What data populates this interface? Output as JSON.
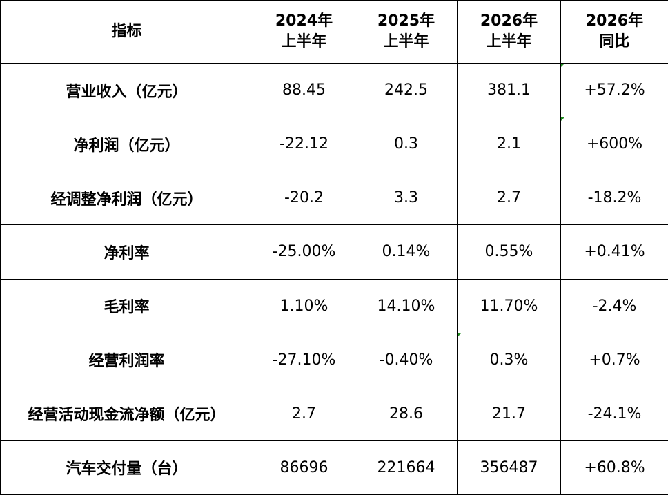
{
  "header": {
    "indicator": "指标",
    "col1": [
      "2024年",
      "上半年"
    ],
    "col2": [
      "2025年",
      "上半年"
    ],
    "col3": [
      "2026年",
      "上半年"
    ],
    "col4": [
      "2026年",
      "同比"
    ]
  },
  "rows": [
    {
      "label": "营业收入（亿元）",
      "v2024": "88.45",
      "v2025": "242.5",
      "v2026": "381.1",
      "yoy": "+57.2%"
    },
    {
      "label": "净利润（亿元）",
      "v2024": "-22.12",
      "v2025": "0.3",
      "v2026": "2.1",
      "yoy": "+600%"
    },
    {
      "label": "经调整净利润（亿元）",
      "v2024": "-20.2",
      "v2025": "3.3",
      "v2026": "2.7",
      "yoy": "-18.2%"
    },
    {
      "label": "净利率",
      "v2024": "-25.00%",
      "v2025": "0.14%",
      "v2026": "0.55%",
      "yoy": "+0.41%"
    },
    {
      "label": "毛利率",
      "v2024": "1.10%",
      "v2025": "14.10%",
      "v2026": "11.70%",
      "yoy": "-2.4%"
    },
    {
      "label": "经营利润率",
      "v2024": "-27.10%",
      "v2025": "-0.40%",
      "v2026": "0.3%",
      "yoy": "+0.7%"
    },
    {
      "label": "经营活动现金流净额（亿元）",
      "v2024": "2.7",
      "v2025": "28.6",
      "v2026": "21.7",
      "yoy": "-24.1%"
    },
    {
      "label": "汽车交付量（台）",
      "v2024": "86696",
      "v2025": "221664",
      "v2026": "356487",
      "yoy": "+60.8%"
    }
  ],
  "colors": {
    "border": "#000000",
    "corner_marker": "#1e8c1e",
    "background": "#ffffff"
  }
}
